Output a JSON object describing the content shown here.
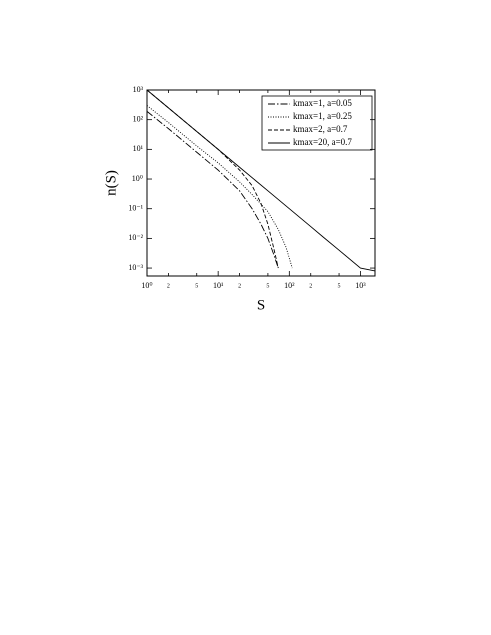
{
  "chart_data": {
    "type": "line",
    "xlabel": "S",
    "ylabel": "n(S)",
    "xscale": "log",
    "yscale": "log",
    "xlim": [
      1,
      1600
    ],
    "ylim": [
      0.00054,
      1000
    ],
    "xticks": [
      {
        "value": 1,
        "label": "10⁰"
      },
      2,
      5,
      {
        "value": 10,
        "label": "10¹"
      },
      {
        "value": 20,
        "label": "2"
      },
      {
        "value": 50,
        "label": "5"
      },
      {
        "value": 100,
        "label": "10²"
      },
      {
        "value": 200,
        "label": "2"
      },
      {
        "value": 500,
        "label": "5"
      },
      {
        "value": 1000,
        "label": "10³"
      }
    ],
    "yticks": [
      {
        "value": 1000,
        "label": "10³"
      },
      {
        "value": 100,
        "label": "10²"
      },
      {
        "value": 10,
        "label": "10¹"
      },
      {
        "value": 1,
        "label": "10⁰"
      },
      {
        "value": 0.1,
        "label": "10⁻¹"
      },
      {
        "value": 0.01,
        "label": "10⁻²"
      },
      {
        "value": 0.001,
        "label": "10⁻³"
      }
    ],
    "legend": "upper right",
    "series": [
      {
        "name": "kmax=1, a=0.05",
        "color": "#000000",
        "linestyle": "dashdot",
        "x": [
          1,
          2,
          5,
          10,
          20,
          30,
          40,
          50,
          60,
          70
        ],
        "values": [
          190,
          50,
          8,
          2,
          0.4,
          0.1,
          0.03,
          0.01,
          0.003,
          0.001
        ]
      },
      {
        "name": "kmax=1, a=0.25",
        "color": "#000000",
        "linestyle": "dotted",
        "x": [
          1,
          2,
          5,
          10,
          20,
          30,
          50,
          70,
          90,
          110
        ],
        "values": [
          300,
          80,
          13,
          3.5,
          0.8,
          0.3,
          0.08,
          0.02,
          0.005,
          0.001
        ]
      },
      {
        "name": "kmax=2, a=0.7",
        "color": "#000000",
        "linestyle": "dashed",
        "x": [
          1,
          2,
          5,
          10,
          20,
          30,
          40,
          50,
          60,
          70
        ],
        "values": [
          1000,
          250,
          40,
          10,
          2,
          0.6,
          0.15,
          0.03,
          0.005,
          0.001
        ]
      },
      {
        "name": "kmax=20, a=0.7",
        "color": "#000000",
        "linestyle": "solid",
        "x": [
          1,
          2,
          5,
          10,
          20,
          50,
          100,
          200,
          300,
          500,
          1000,
          1600
        ],
        "values": [
          1000,
          250,
          40,
          10,
          2.5,
          0.4,
          0.1,
          0.025,
          0.011,
          0.004,
          0.001,
          0.0008
        ]
      }
    ]
  }
}
